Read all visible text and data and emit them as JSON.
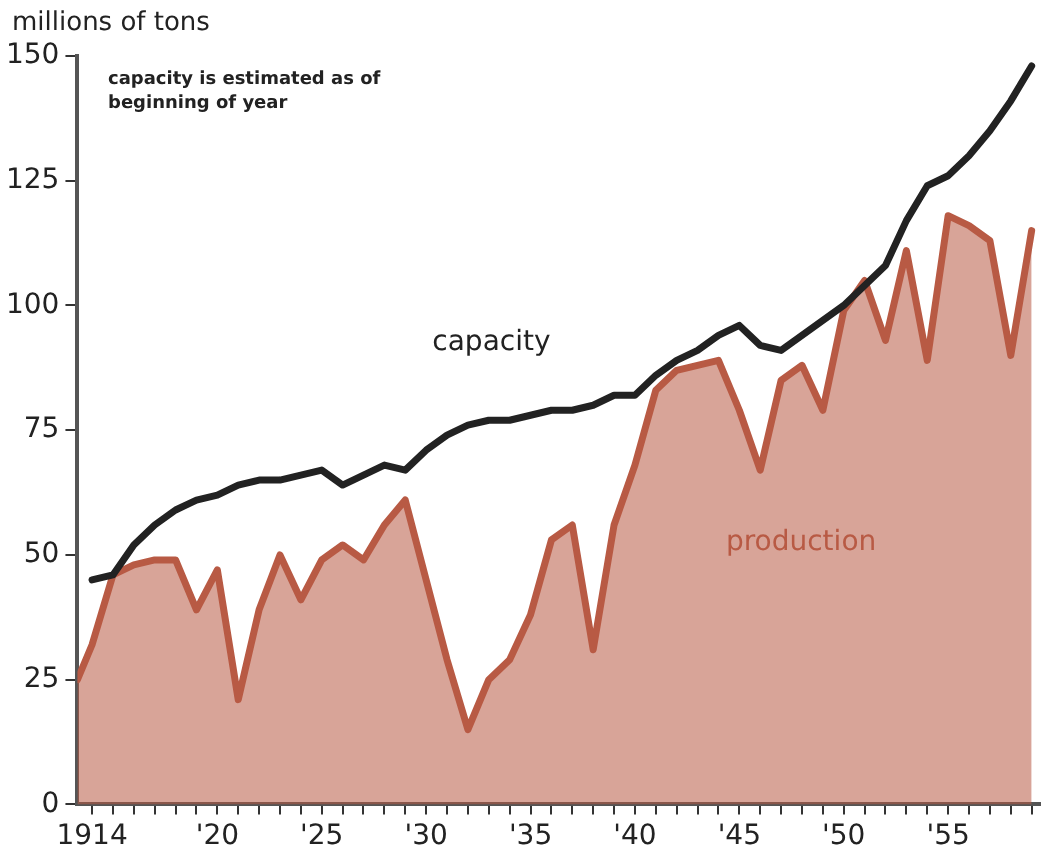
{
  "chart_data": {
    "type": "line",
    "ylabel": "millions of tons",
    "annotations": [
      "capacity is estimated as of beginning of year"
    ],
    "xlim": [
      1913.3,
      1959.4
    ],
    "xticks": [
      {
        "value": 1914,
        "label": "1914"
      },
      {
        "value": 1915,
        "label": null
      },
      {
        "value": 1916,
        "label": null
      },
      {
        "value": 1917,
        "label": null
      },
      {
        "value": 1918,
        "label": null
      },
      {
        "value": 1919,
        "label": null
      },
      {
        "value": 1920,
        "label": "'20"
      },
      {
        "value": 1921,
        "label": null
      },
      {
        "value": 1922,
        "label": null
      },
      {
        "value": 1923,
        "label": null
      },
      {
        "value": 1924,
        "label": null
      },
      {
        "value": 1925,
        "label": "'25"
      },
      {
        "value": 1926,
        "label": null
      },
      {
        "value": 1927,
        "label": null
      },
      {
        "value": 1928,
        "label": null
      },
      {
        "value": 1929,
        "label": null
      },
      {
        "value": 1930,
        "label": "'30"
      },
      {
        "value": 1931,
        "label": null
      },
      {
        "value": 1932,
        "label": null
      },
      {
        "value": 1933,
        "label": null
      },
      {
        "value": 1934,
        "label": null
      },
      {
        "value": 1935,
        "label": "'35"
      },
      {
        "value": 1936,
        "label": null
      },
      {
        "value": 1937,
        "label": null
      },
      {
        "value": 1938,
        "label": null
      },
      {
        "value": 1939,
        "label": null
      },
      {
        "value": 1940,
        "label": "'40"
      },
      {
        "value": 1941,
        "label": null
      },
      {
        "value": 1942,
        "label": null
      },
      {
        "value": 1943,
        "label": null
      },
      {
        "value": 1944,
        "label": null
      },
      {
        "value": 1945,
        "label": "'45"
      },
      {
        "value": 1946,
        "label": null
      },
      {
        "value": 1947,
        "label": null
      },
      {
        "value": 1948,
        "label": null
      },
      {
        "value": 1949,
        "label": null
      },
      {
        "value": 1950,
        "label": "'50"
      },
      {
        "value": 1951,
        "label": null
      },
      {
        "value": 1952,
        "label": null
      },
      {
        "value": 1953,
        "label": null
      },
      {
        "value": 1954,
        "label": null
      },
      {
        "value": 1955,
        "label": "'55"
      },
      {
        "value": 1956,
        "label": null
      },
      {
        "value": 1957,
        "label": null
      },
      {
        "value": 1958,
        "label": null
      },
      {
        "value": 1959,
        "label": null
      }
    ],
    "ylim": [
      0,
      150
    ],
    "yticks": [
      0,
      25,
      50,
      75,
      100,
      125,
      150
    ],
    "grid": false,
    "legend": false,
    "marker": "none",
    "line_style": "solid",
    "series": [
      {
        "name": "production",
        "type": "area",
        "color": "#b85a44",
        "x": [
          1913.3,
          1914,
          1915,
          1916,
          1917,
          1918,
          1919,
          1920,
          1921,
          1922,
          1923,
          1924,
          1925,
          1926,
          1927,
          1928,
          1929,
          1930,
          1931,
          1932,
          1933,
          1934,
          1935,
          1936,
          1937,
          1938,
          1939,
          1940,
          1941,
          1942,
          1943,
          1944,
          1945,
          1946,
          1947,
          1948,
          1949,
          1950,
          1951,
          1952,
          1953,
          1954,
          1955,
          1956,
          1957,
          1958,
          1959
        ],
        "values": [
          25,
          32,
          46,
          48,
          49,
          49,
          39,
          47,
          21,
          39,
          50,
          41,
          49,
          52,
          49,
          56,
          61,
          45,
          29,
          15,
          25,
          29,
          38,
          53,
          56,
          31,
          56,
          68,
          83,
          87,
          88,
          89,
          79,
          67,
          85,
          88,
          79,
          99,
          105,
          93,
          111,
          89,
          118,
          116,
          113,
          90,
          115
        ]
      },
      {
        "name": "capacity",
        "type": "line",
        "color": "#222222",
        "x": [
          1914,
          1915,
          1916,
          1917,
          1918,
          1919,
          1920,
          1921,
          1922,
          1923,
          1924,
          1925,
          1926,
          1927,
          1928,
          1929,
          1930,
          1931,
          1932,
          1933,
          1934,
          1935,
          1936,
          1937,
          1938,
          1939,
          1940,
          1941,
          1942,
          1943,
          1944,
          1945,
          1946,
          1947,
          1948,
          1949,
          1950,
          1951,
          1952,
          1953,
          1954,
          1955,
          1956,
          1957,
          1958,
          1959
        ],
        "values": [
          45,
          46,
          52,
          56,
          59,
          61,
          62,
          64,
          65,
          65,
          66,
          67,
          64,
          66,
          68,
          67,
          71,
          74,
          76,
          77,
          77,
          78,
          79,
          79,
          80,
          82,
          82,
          86,
          89,
          91,
          94,
          96,
          92,
          91,
          94,
          97,
          100,
          104,
          108,
          117,
          124,
          126,
          130,
          135,
          141,
          148
        ]
      }
    ]
  }
}
